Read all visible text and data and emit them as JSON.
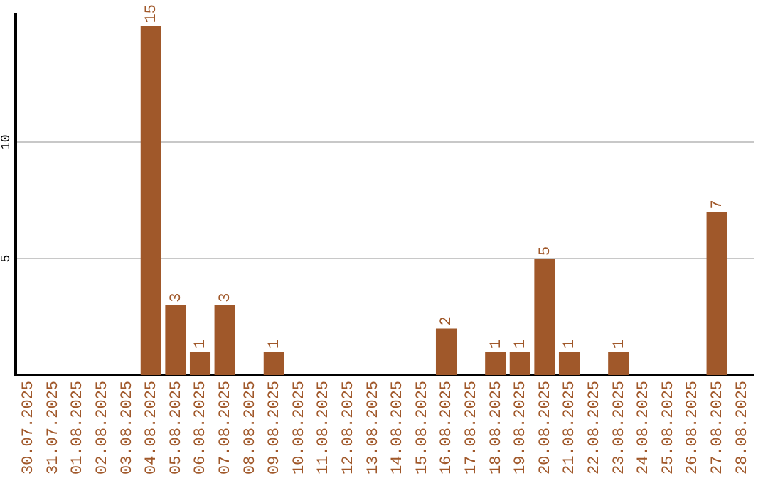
{
  "chart_data": {
    "type": "bar",
    "categories": [
      "30.07.2025",
      "31.07.2025",
      "01.08.2025",
      "02.08.2025",
      "03.08.2025",
      "04.08.2025",
      "05.08.2025",
      "06.08.2025",
      "07.08.2025",
      "08.08.2025",
      "09.08.2025",
      "10.08.2025",
      "11.08.2025",
      "12.08.2025",
      "13.08.2025",
      "14.08.2025",
      "15.08.2025",
      "16.08.2025",
      "17.08.2025",
      "18.08.2025",
      "19.08.2025",
      "20.08.2025",
      "21.08.2025",
      "22.08.2025",
      "23.08.2025",
      "24.08.2025",
      "25.08.2025",
      "26.08.2025",
      "27.08.2025",
      "28.08.2025"
    ],
    "values": [
      0,
      0,
      0,
      0,
      0,
      15,
      3,
      1,
      3,
      0,
      1,
      0,
      0,
      0,
      0,
      0,
      0,
      2,
      0,
      1,
      1,
      5,
      1,
      0,
      1,
      0,
      0,
      0,
      7,
      0
    ],
    "value_labels": [
      null,
      null,
      null,
      null,
      null,
      "15",
      "3",
      "1",
      "3",
      null,
      "1",
      null,
      null,
      null,
      null,
      null,
      null,
      "2",
      null,
      "1",
      "1",
      "5",
      "1",
      null,
      "1",
      null,
      null,
      null,
      "7",
      null
    ],
    "color": "#a0582a",
    "ylim": [
      0,
      15.5
    ],
    "yticks": [
      5,
      10
    ],
    "grid": "y",
    "legend": false
  }
}
